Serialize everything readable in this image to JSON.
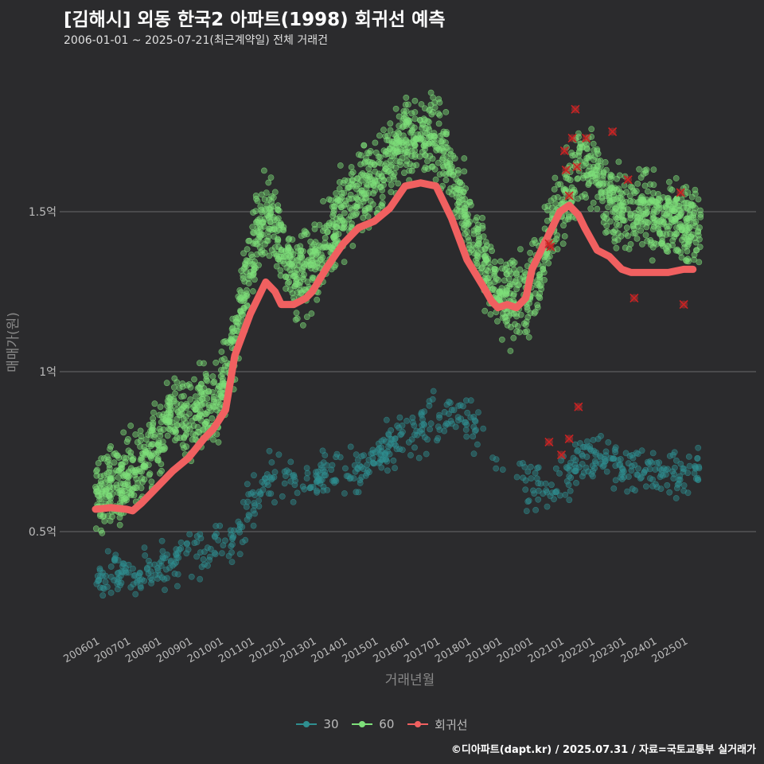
{
  "title": "[김해시] 외동 한국2 아파트(1998) 회귀선 예측",
  "subtitle": "2006-01-01 ~ 2025-07-21(최근계약일) 전체 거래건",
  "caption": "©디아파트(dapt.kr) / 2025.07.31 / 자료=국토교통부 실거래가",
  "colors": {
    "s30": "#2f8f90",
    "s60": "#7ee07a",
    "reg": "#f06060",
    "x": "#cc2222",
    "grid": "#6a6a6a"
  },
  "chart_data": {
    "type": "scatter",
    "xlabel": "거래년월",
    "ylabel": "매매가(원)",
    "y_unit": "억",
    "ylim": [
      0.2,
      1.9
    ],
    "x_range": [
      2006.0,
      2025.55
    ],
    "x_ticks": [
      {
        "v": 2006.0,
        "label": "200601"
      },
      {
        "v": 2007.0,
        "label": "200701"
      },
      {
        "v": 2008.0,
        "label": "200801"
      },
      {
        "v": 2009.0,
        "label": "200901"
      },
      {
        "v": 2010.0,
        "label": "201001"
      },
      {
        "v": 2011.0,
        "label": "201101"
      },
      {
        "v": 2012.0,
        "label": "201201"
      },
      {
        "v": 2013.0,
        "label": "201301"
      },
      {
        "v": 2014.0,
        "label": "201401"
      },
      {
        "v": 2015.0,
        "label": "201501"
      },
      {
        "v": 2016.0,
        "label": "201601"
      },
      {
        "v": 2017.0,
        "label": "201701"
      },
      {
        "v": 2018.0,
        "label": "201801"
      },
      {
        "v": 2019.0,
        "label": "201901"
      },
      {
        "v": 2020.0,
        "label": "202001"
      },
      {
        "v": 2021.0,
        "label": "202101"
      },
      {
        "v": 2022.0,
        "label": "202201"
      },
      {
        "v": 2023.0,
        "label": "202301"
      },
      {
        "v": 2024.0,
        "label": "202401"
      },
      {
        "v": 2025.0,
        "label": "202501"
      }
    ],
    "y_ticks": [
      {
        "v": 0.5,
        "label": "0.5억"
      },
      {
        "v": 1.0,
        "label": "1억"
      },
      {
        "v": 1.5,
        "label": "1.5억"
      }
    ],
    "legend": [
      {
        "name": "30",
        "color": "#2f8f90"
      },
      {
        "name": "60",
        "color": "#7ee07a"
      },
      {
        "name": "회귀선",
        "color": "#f06060"
      }
    ],
    "series_trend": {
      "30": [
        [
          2006.0,
          0.35
        ],
        [
          2006.5,
          0.36
        ],
        [
          2007.0,
          0.36
        ],
        [
          2007.5,
          0.37
        ],
        [
          2008.0,
          0.38
        ],
        [
          2008.5,
          0.4
        ],
        [
          2009.0,
          0.42
        ],
        [
          2009.5,
          0.43
        ],
        [
          2010.0,
          0.46
        ],
        [
          2010.5,
          0.48
        ],
        [
          2011.0,
          0.58
        ],
        [
          2011.5,
          0.66
        ],
        [
          2012.0,
          0.66
        ],
        [
          2012.5,
          0.66
        ],
        [
          2013.0,
          0.67
        ],
        [
          2013.5,
          0.69
        ],
        [
          2014.0,
          0.7
        ],
        [
          2014.5,
          0.7
        ],
        [
          2015.0,
          0.72
        ],
        [
          2015.5,
          0.76
        ],
        [
          2016.0,
          0.8
        ],
        [
          2016.5,
          0.82
        ],
        [
          2017.0,
          0.85
        ],
        [
          2017.5,
          0.86
        ],
        [
          2018.0,
          0.85
        ],
        [
          2018.5,
          0.8
        ],
        [
          2019.0,
          0.72
        ],
        [
          2019.5,
          0.67
        ],
        [
          2020.0,
          0.64
        ],
        [
          2020.5,
          0.63
        ],
        [
          2021.0,
          0.66
        ],
        [
          2021.5,
          0.7
        ],
        [
          2022.0,
          0.74
        ],
        [
          2022.5,
          0.72
        ],
        [
          2023.0,
          0.7
        ],
        [
          2023.5,
          0.7
        ],
        [
          2024.0,
          0.7
        ],
        [
          2024.5,
          0.67
        ],
        [
          2025.0,
          0.67
        ],
        [
          2025.5,
          0.68
        ]
      ],
      "60": [
        [
          2006.0,
          0.62
        ],
        [
          2006.5,
          0.64
        ],
        [
          2007.0,
          0.65
        ],
        [
          2007.5,
          0.72
        ],
        [
          2008.0,
          0.8
        ],
        [
          2008.5,
          0.88
        ],
        [
          2009.0,
          0.85
        ],
        [
          2009.5,
          0.88
        ],
        [
          2010.0,
          0.9
        ],
        [
          2010.5,
          1.1
        ],
        [
          2011.0,
          1.35
        ],
        [
          2011.5,
          1.5
        ],
        [
          2012.0,
          1.4
        ],
        [
          2012.5,
          1.3
        ],
        [
          2013.0,
          1.33
        ],
        [
          2013.5,
          1.42
        ],
        [
          2014.0,
          1.5
        ],
        [
          2014.5,
          1.56
        ],
        [
          2015.0,
          1.6
        ],
        [
          2015.5,
          1.66
        ],
        [
          2016.0,
          1.72
        ],
        [
          2016.5,
          1.75
        ],
        [
          2017.0,
          1.74
        ],
        [
          2017.5,
          1.62
        ],
        [
          2018.0,
          1.5
        ],
        [
          2018.5,
          1.35
        ],
        [
          2019.0,
          1.25
        ],
        [
          2019.5,
          1.22
        ],
        [
          2020.0,
          1.23
        ],
        [
          2020.5,
          1.35
        ],
        [
          2021.0,
          1.52
        ],
        [
          2021.5,
          1.62
        ],
        [
          2022.0,
          1.66
        ],
        [
          2022.5,
          1.55
        ],
        [
          2023.0,
          1.5
        ],
        [
          2023.5,
          1.52
        ],
        [
          2024.0,
          1.5
        ],
        [
          2024.5,
          1.48
        ],
        [
          2025.0,
          1.46
        ],
        [
          2025.5,
          1.45
        ]
      ]
    },
    "regression": [
      [
        2006.0,
        0.57
      ],
      [
        2006.5,
        0.575
      ],
      [
        2007.0,
        0.57
      ],
      [
        2007.2,
        0.565
      ],
      [
        2007.5,
        0.59
      ],
      [
        2008.0,
        0.64
      ],
      [
        2008.5,
        0.69
      ],
      [
        2009.0,
        0.73
      ],
      [
        2009.5,
        0.79
      ],
      [
        2009.8,
        0.82
      ],
      [
        2010.2,
        0.88
      ],
      [
        2010.5,
        1.05
      ],
      [
        2011.0,
        1.18
      ],
      [
        2011.5,
        1.28
      ],
      [
        2011.8,
        1.25
      ],
      [
        2012.0,
        1.21
      ],
      [
        2012.4,
        1.21
      ],
      [
        2012.8,
        1.23
      ],
      [
        2013.0,
        1.25
      ],
      [
        2013.5,
        1.33
      ],
      [
        2014.0,
        1.4
      ],
      [
        2014.5,
        1.45
      ],
      [
        2015.0,
        1.47
      ],
      [
        2015.5,
        1.51
      ],
      [
        2016.0,
        1.58
      ],
      [
        2016.5,
        1.59
      ],
      [
        2017.0,
        1.58
      ],
      [
        2017.5,
        1.48
      ],
      [
        2018.0,
        1.35
      ],
      [
        2018.5,
        1.27
      ],
      [
        2018.8,
        1.22
      ],
      [
        2019.0,
        1.2
      ],
      [
        2019.3,
        1.21
      ],
      [
        2019.6,
        1.2
      ],
      [
        2019.9,
        1.23
      ],
      [
        2020.1,
        1.32
      ],
      [
        2020.5,
        1.4
      ],
      [
        2020.8,
        1.46
      ],
      [
        2021.0,
        1.5
      ],
      [
        2021.3,
        1.52
      ],
      [
        2021.6,
        1.49
      ],
      [
        2021.8,
        1.45
      ],
      [
        2022.2,
        1.38
      ],
      [
        2022.6,
        1.36
      ],
      [
        2023.0,
        1.32
      ],
      [
        2023.3,
        1.31
      ],
      [
        2023.6,
        1.31
      ],
      [
        2024.0,
        1.31
      ],
      [
        2024.5,
        1.31
      ],
      [
        2025.0,
        1.32
      ],
      [
        2025.3,
        1.32
      ]
    ],
    "x_marks": [
      [
        2020.65,
        1.4
      ],
      [
        2020.7,
        1.39
      ],
      [
        2021.15,
        1.69
      ],
      [
        2021.2,
        1.63
      ],
      [
        2021.3,
        1.55
      ],
      [
        2021.4,
        1.73
      ],
      [
        2021.5,
        1.82
      ],
      [
        2021.55,
        1.64
      ],
      [
        2021.85,
        1.73
      ],
      [
        2022.7,
        1.75
      ],
      [
        2023.2,
        1.6
      ],
      [
        2023.4,
        1.23
      ],
      [
        2024.9,
        1.56
      ],
      [
        2025.0,
        1.21
      ],
      [
        2020.65,
        0.78
      ],
      [
        2021.05,
        0.74
      ],
      [
        2021.3,
        0.79
      ],
      [
        2021.6,
        0.89
      ]
    ]
  }
}
